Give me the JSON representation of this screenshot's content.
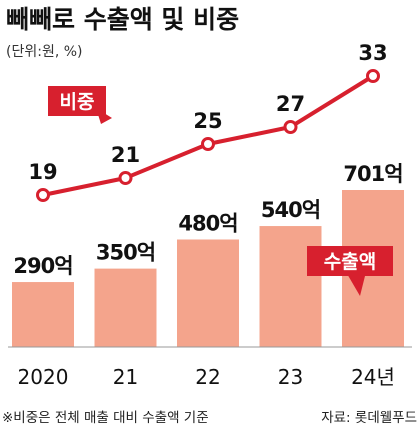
{
  "title": "빼빼로 수출액 및 비중",
  "unit_note": "(단위:원, %)",
  "footnote": "※비중은 전체 매출 대비 수출액 기준",
  "source": "자료: 롯데웰푸드",
  "tags": {
    "line": "비중",
    "bar": "수출액"
  },
  "colors": {
    "bar": "#f4a48c",
    "line": "#d7202e",
    "axis": "#999999"
  },
  "chart_data": {
    "type": "bar",
    "categories": [
      "2020",
      "21",
      "22",
      "23",
      "24년"
    ],
    "series": [
      {
        "name": "수출액",
        "type": "bar",
        "values": [
          290,
          350,
          480,
          540,
          701
        ],
        "labels": [
          "290억",
          "350억",
          "480억",
          "540억",
          "701억"
        ]
      },
      {
        "name": "비중",
        "type": "line",
        "values": [
          19,
          21,
          25,
          27,
          33
        ],
        "labels": [
          "19",
          "21",
          "25",
          "27",
          "33"
        ]
      }
    ],
    "title": "빼빼로 수출액 및 비중",
    "xlabel": "",
    "ylabel": "",
    "grid": false,
    "legend": "inline labels"
  }
}
